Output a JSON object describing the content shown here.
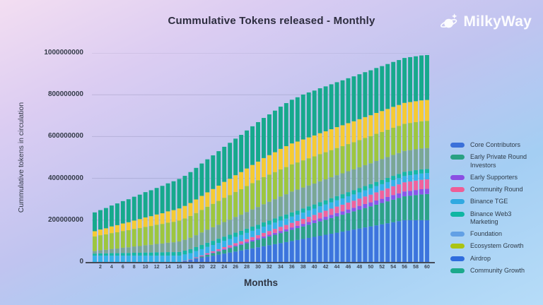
{
  "header": {
    "title": "Cummulative Tokens released - Monthly",
    "logo_text": "MilkyWay"
  },
  "axes": {
    "ylabel": "Cummulative tokens in circulation",
    "xlabel": "Months"
  },
  "chart_data": {
    "type": "bar",
    "stacked": true,
    "title": "Cummulative Tokens released - Monthly",
    "xlabel": "Months",
    "ylabel": "Cummulative tokens in circulation",
    "legend_position": "right",
    "grid": true,
    "ylim": [
      0,
      1000000000
    ],
    "y_max_millions": 1000,
    "values_unit": "millions of tokens (multiply by 1000000 for tokens)",
    "x": [
      1,
      2,
      3,
      4,
      5,
      6,
      7,
      8,
      9,
      10,
      11,
      12,
      13,
      14,
      15,
      16,
      17,
      18,
      19,
      20,
      21,
      22,
      23,
      24,
      25,
      26,
      27,
      28,
      29,
      30,
      31,
      32,
      33,
      34,
      35,
      36,
      37,
      38,
      39,
      40,
      41,
      42,
      43,
      44,
      45,
      46,
      47,
      48,
      49,
      50,
      51,
      52,
      53,
      54,
      55,
      56,
      57,
      58,
      59,
      60
    ],
    "x_tick_labels": [
      2,
      4,
      6,
      8,
      10,
      12,
      14,
      16,
      18,
      20,
      22,
      24,
      26,
      28,
      30,
      32,
      34,
      36,
      38,
      40,
      42,
      44,
      46,
      48,
      50,
      52,
      54,
      56,
      58,
      60
    ],
    "y_ticks": [
      {
        "value_millions": 0,
        "label": "0"
      },
      {
        "value_millions": 200,
        "label": "200000000"
      },
      {
        "value_millions": 400,
        "label": "400000000"
      },
      {
        "value_millions": 600,
        "label": "600000000"
      },
      {
        "value_millions": 800,
        "label": "800000000"
      },
      {
        "value_millions": 1000,
        "label": "1000000000"
      }
    ],
    "series": [
      {
        "name": "Core Contributors",
        "legend_color": "#3b70d9",
        "bar_color": "#3c74dd",
        "values": [
          0,
          0,
          0,
          0,
          0,
          0,
          0,
          0,
          0,
          0,
          0,
          0,
          0,
          0,
          0,
          0,
          5,
          10,
          15,
          20,
          25,
          30,
          35,
          40,
          45,
          50,
          55,
          60,
          65,
          70,
          75,
          80,
          85,
          90,
          95,
          100,
          105,
          110,
          115,
          120,
          125,
          130,
          135,
          140,
          145,
          150,
          155,
          160,
          165,
          170,
          175,
          180,
          185,
          190,
          195,
          200,
          200,
          200,
          200,
          200
        ]
      },
      {
        "name": "Early Private Round Investors",
        "legend_color": "#2aa183",
        "bar_color": "#2ca287",
        "values": [
          0,
          0,
          0,
          0,
          0,
          0,
          0,
          0,
          0,
          0,
          0,
          0,
          0,
          0,
          0,
          0,
          0,
          0,
          3,
          6,
          9,
          12,
          15,
          18,
          21,
          24,
          27,
          30,
          33,
          36,
          39,
          42,
          45,
          48,
          51,
          54,
          57,
          60,
          63,
          66,
          69,
          72,
          75,
          78,
          81,
          84,
          87,
          90,
          93,
          96,
          99,
          102,
          105,
          108,
          111,
          114,
          117,
          120,
          123,
          125
        ]
      },
      {
        "name": "Early Supporters",
        "legend_color": "#8a4fe3",
        "bar_color": "#8a55e8",
        "values": [
          0,
          0,
          0,
          0,
          0,
          0,
          0,
          0,
          0,
          0,
          0,
          0,
          0,
          0,
          0,
          0,
          0,
          0,
          1,
          1,
          2,
          2,
          3,
          4,
          4,
          5,
          5,
          6,
          7,
          7,
          8,
          8,
          9,
          10,
          10,
          11,
          11,
          12,
          13,
          13,
          14,
          14,
          15,
          16,
          16,
          17,
          17,
          18,
          19,
          19,
          20,
          20,
          21,
          22,
          22,
          23,
          23,
          24,
          25,
          25
        ]
      },
      {
        "name": "Community Round",
        "legend_color": "#ee5e96",
        "bar_color": "#ef639d",
        "values": [
          0,
          0,
          0,
          0,
          0,
          0,
          0,
          0,
          0,
          0,
          0,
          0,
          0,
          0,
          0,
          0,
          1,
          2,
          3,
          4,
          6,
          7,
          8,
          9,
          10,
          11,
          12,
          13,
          14,
          15,
          17,
          18,
          19,
          20,
          21,
          22,
          23,
          24,
          25,
          26,
          28,
          29,
          30,
          31,
          32,
          33,
          34,
          35,
          36,
          37,
          39,
          40,
          41,
          42,
          43,
          44,
          45,
          45,
          45,
          45
        ]
      },
      {
        "name": "Binance TGE",
        "legend_color": "#31a9e1",
        "bar_color": "#36b3e9",
        "values": [
          30,
          30,
          30,
          30,
          30,
          30,
          30,
          30,
          30,
          30,
          30,
          30,
          30,
          30,
          30,
          30,
          30,
          30,
          30,
          30,
          30,
          30,
          30,
          30,
          30,
          30,
          30,
          30,
          30,
          30,
          30,
          30,
          30,
          30,
          30,
          30,
          30,
          30,
          30,
          30,
          30,
          30,
          30,
          30,
          30,
          30,
          30,
          30,
          30,
          30,
          30,
          30,
          30,
          30,
          30,
          30,
          30,
          30,
          30,
          30
        ]
      },
      {
        "name": "Binance Web3 Marketing",
        "legend_color": "#10b6a3",
        "bar_color": "#16b8a4",
        "values": [
          10,
          11,
          11,
          12,
          12,
          13,
          13,
          14,
          14,
          15,
          15,
          16,
          16,
          17,
          17,
          18,
          18,
          19,
          19,
          20,
          20,
          20,
          20,
          20,
          20,
          20,
          20,
          20,
          20,
          20,
          20,
          20,
          20,
          20,
          20,
          20,
          20,
          20,
          20,
          20,
          20,
          20,
          20,
          20,
          20,
          20,
          20,
          20,
          20,
          20,
          20,
          20,
          20,
          20,
          20,
          20,
          20,
          20,
          20,
          20
        ]
      },
      {
        "name": "Foundation",
        "legend_color": "#62a0e5",
        "bar_color": "#7aa795",
        "values": [
          12,
          15,
          17,
          20,
          22,
          25,
          27,
          30,
          32,
          35,
          37,
          40,
          42,
          45,
          47,
          50,
          52,
          55,
          57,
          60,
          62,
          65,
          67,
          70,
          72,
          75,
          77,
          80,
          82,
          85,
          87,
          90,
          92,
          95,
          97,
          100,
          100,
          100,
          100,
          100,
          100,
          100,
          100,
          100,
          100,
          100,
          100,
          100,
          100,
          100,
          100,
          100,
          100,
          100,
          100,
          100,
          100,
          100,
          100,
          100
        ]
      },
      {
        "name": "Ecosystem Growth",
        "legend_color": "#abc414",
        "bar_color": "#9dc63f",
        "values": [
          70,
          72,
          74,
          76,
          78,
          80,
          82,
          84,
          86,
          88,
          90,
          92,
          94,
          96,
          98,
          100,
          102,
          104,
          106,
          108,
          110,
          112,
          114,
          116,
          118,
          120,
          122,
          124,
          126,
          128,
          130,
          130,
          130,
          130,
          130,
          130,
          130,
          130,
          130,
          130,
          130,
          130,
          130,
          130,
          130,
          130,
          130,
          130,
          130,
          130,
          130,
          130,
          130,
          130,
          130,
          130,
          130,
          130,
          130,
          130
        ]
      },
      {
        "name": "Airdrop",
        "legend_color": "#2f6cdd",
        "bar_color": "#f6cb32",
        "values": [
          25,
          27,
          29,
          32,
          34,
          36,
          38,
          40,
          43,
          45,
          47,
          49,
          51,
          54,
          56,
          58,
          60,
          62,
          65,
          67,
          69,
          71,
          73,
          76,
          78,
          80,
          82,
          84,
          87,
          89,
          91,
          93,
          95,
          98,
          100,
          100,
          100,
          100,
          100,
          100,
          100,
          100,
          100,
          100,
          100,
          100,
          100,
          100,
          100,
          100,
          100,
          100,
          100,
          100,
          100,
          100,
          100,
          100,
          100,
          100
        ]
      },
      {
        "name": "Community Growth",
        "legend_color": "#1ca98b",
        "bar_color": "#16a98c",
        "values": [
          90,
          93,
          97,
          100,
          104,
          107,
          110,
          114,
          117,
          121,
          124,
          127,
          131,
          134,
          138,
          141,
          144,
          148,
          151,
          155,
          158,
          161,
          165,
          168,
          172,
          175,
          178,
          182,
          185,
          189,
          192,
          195,
          199,
          202,
          206,
          209,
          212,
          215,
          215,
          215,
          215,
          215,
          215,
          215,
          215,
          215,
          215,
          215,
          215,
          215,
          215,
          215,
          215,
          215,
          215,
          215,
          215,
          215,
          215,
          215
        ]
      }
    ]
  }
}
